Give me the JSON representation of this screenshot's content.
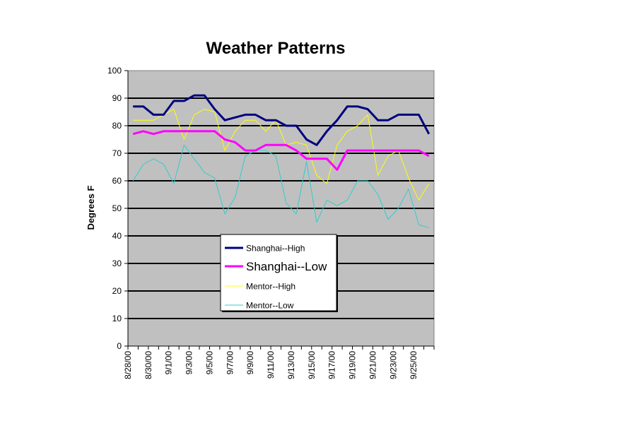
{
  "chart_data": {
    "type": "line",
    "title": "Weather Patterns",
    "xlabel": "",
    "ylabel": "Degrees F",
    "ylim": [
      0,
      100
    ],
    "yticks": [
      0,
      10,
      20,
      30,
      40,
      50,
      60,
      70,
      80,
      90,
      100
    ],
    "grid": "horizontal",
    "legend_position": "center-bottom",
    "plot_background": "#c0c0c0",
    "x": [
      "8/28/00",
      "8/29/00",
      "8/30/00",
      "8/31/00",
      "9/1/00",
      "9/2/00",
      "9/3/00",
      "9/4/00",
      "9/5/00",
      "9/6/00",
      "9/7/00",
      "9/8/00",
      "9/9/00",
      "9/10/00",
      "9/11/00",
      "9/12/00",
      "9/13/00",
      "9/14/00",
      "9/15/00",
      "9/16/00",
      "9/17/00",
      "9/18/00",
      "9/19/00",
      "9/20/00",
      "9/21/00",
      "9/22/00",
      "9/23/00",
      "9/24/00",
      "9/25/00",
      "9/26/00"
    ],
    "x_tick_labels": [
      "8/28/00",
      "8/30/00",
      "9/1/00",
      "9/3/00",
      "9/5/00",
      "9/7/00",
      "9/9/00",
      "9/11/00",
      "9/13/00",
      "9/15/00",
      "9/17/00",
      "9/19/00",
      "9/21/00",
      "9/23/00",
      "9/25/00"
    ],
    "series": [
      {
        "name": "Shanghai--High",
        "color": "#000080",
        "width": 3,
        "values": [
          87,
          87,
          84,
          84,
          89,
          89,
          91,
          91,
          86,
          82,
          83,
          84,
          84,
          82,
          82,
          80,
          80,
          75,
          73,
          78,
          82,
          87,
          87,
          86,
          82,
          82,
          84,
          84,
          84,
          77
        ]
      },
      {
        "name": "Shanghai--Low",
        "color": "#ff00ff",
        "width": 3,
        "values": [
          77,
          78,
          77,
          78,
          78,
          78,
          78,
          78,
          78,
          75,
          74,
          71,
          71,
          73,
          73,
          73,
          71,
          68,
          68,
          68,
          64,
          71,
          71,
          71,
          71,
          71,
          71,
          71,
          71,
          69
        ]
      },
      {
        "name": "Mentor--High",
        "color": "#ffff00",
        "width": 1,
        "values": [
          82,
          82,
          82,
          84,
          86,
          75,
          84,
          86,
          85,
          71,
          78,
          82,
          82,
          78,
          82,
          73,
          74,
          73,
          62,
          59,
          73,
          78,
          80,
          84,
          62,
          69,
          71,
          61,
          53,
          59
        ]
      },
      {
        "name": "Mentor--Low",
        "color": "#33cccc",
        "width": 1,
        "values": [
          60,
          66,
          68,
          66,
          59,
          73,
          68,
          63,
          61,
          48,
          54,
          69,
          71,
          71,
          69,
          52,
          48,
          67,
          45,
          53,
          51,
          53,
          60,
          60,
          55,
          46,
          50,
          57,
          44,
          43
        ]
      }
    ]
  }
}
